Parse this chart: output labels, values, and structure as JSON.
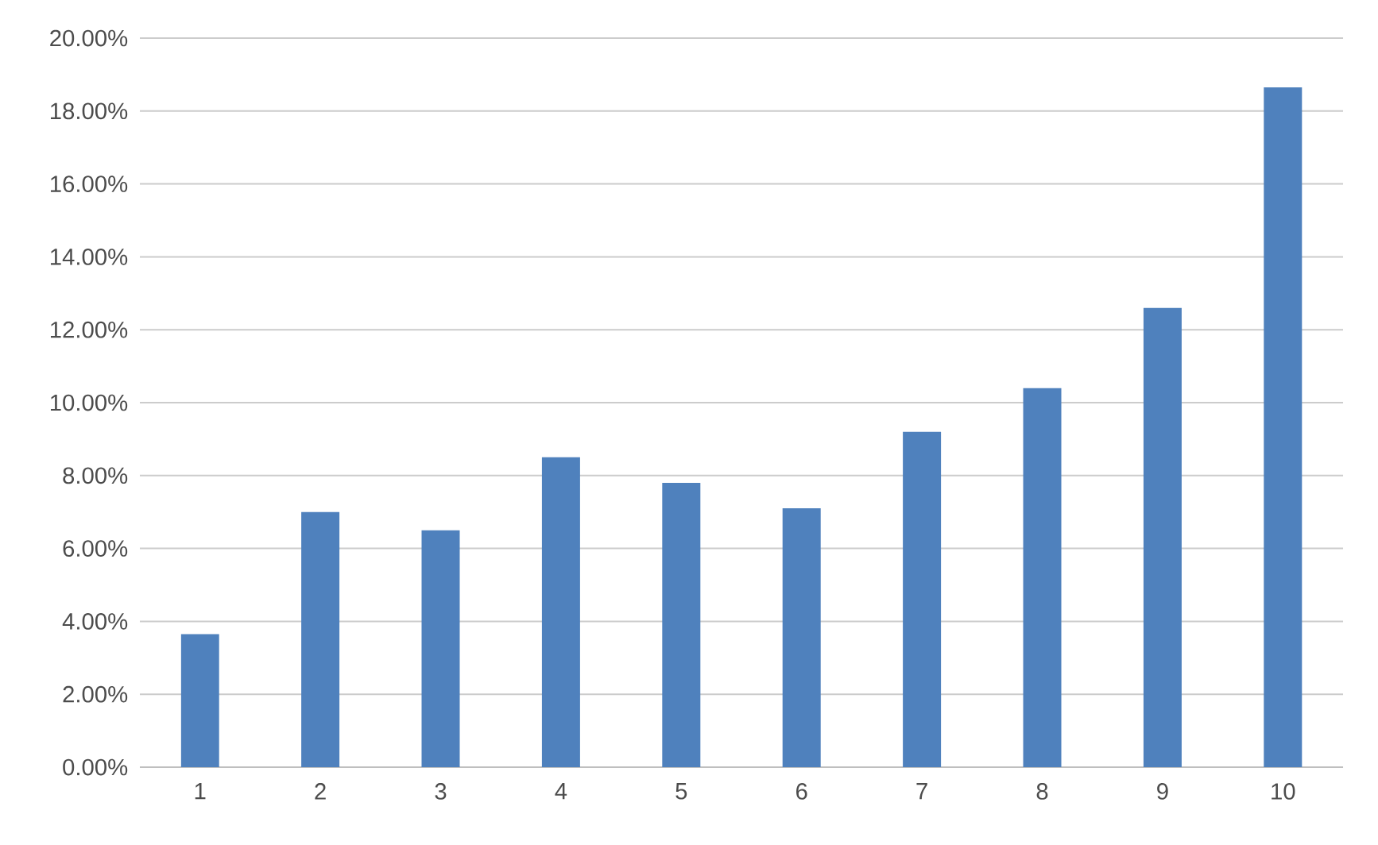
{
  "chart_data": {
    "type": "bar",
    "categories": [
      "1",
      "2",
      "3",
      "4",
      "5",
      "6",
      "7",
      "8",
      "9",
      "10"
    ],
    "values": [
      3.65,
      7.0,
      6.5,
      8.5,
      7.8,
      7.1,
      9.2,
      10.4,
      12.6,
      18.65
    ],
    "color": "#4f81bd",
    "ylim": [
      0,
      20
    ],
    "yticks": [
      {
        "value": 0,
        "label": "0.00%"
      },
      {
        "value": 2,
        "label": "2.00%"
      },
      {
        "value": 4,
        "label": "4.00%"
      },
      {
        "value": 6,
        "label": "6.00%"
      },
      {
        "value": 8,
        "label": "8.00%"
      },
      {
        "value": 10,
        "label": "10.00%"
      },
      {
        "value": 12,
        "label": "12.00%"
      },
      {
        "value": 14,
        "label": "14.00%"
      },
      {
        "value": 16,
        "label": "16.00%"
      },
      {
        "value": 18,
        "label": "18.00%"
      },
      {
        "value": 20,
        "label": "20.00%"
      }
    ],
    "grid": "y"
  }
}
